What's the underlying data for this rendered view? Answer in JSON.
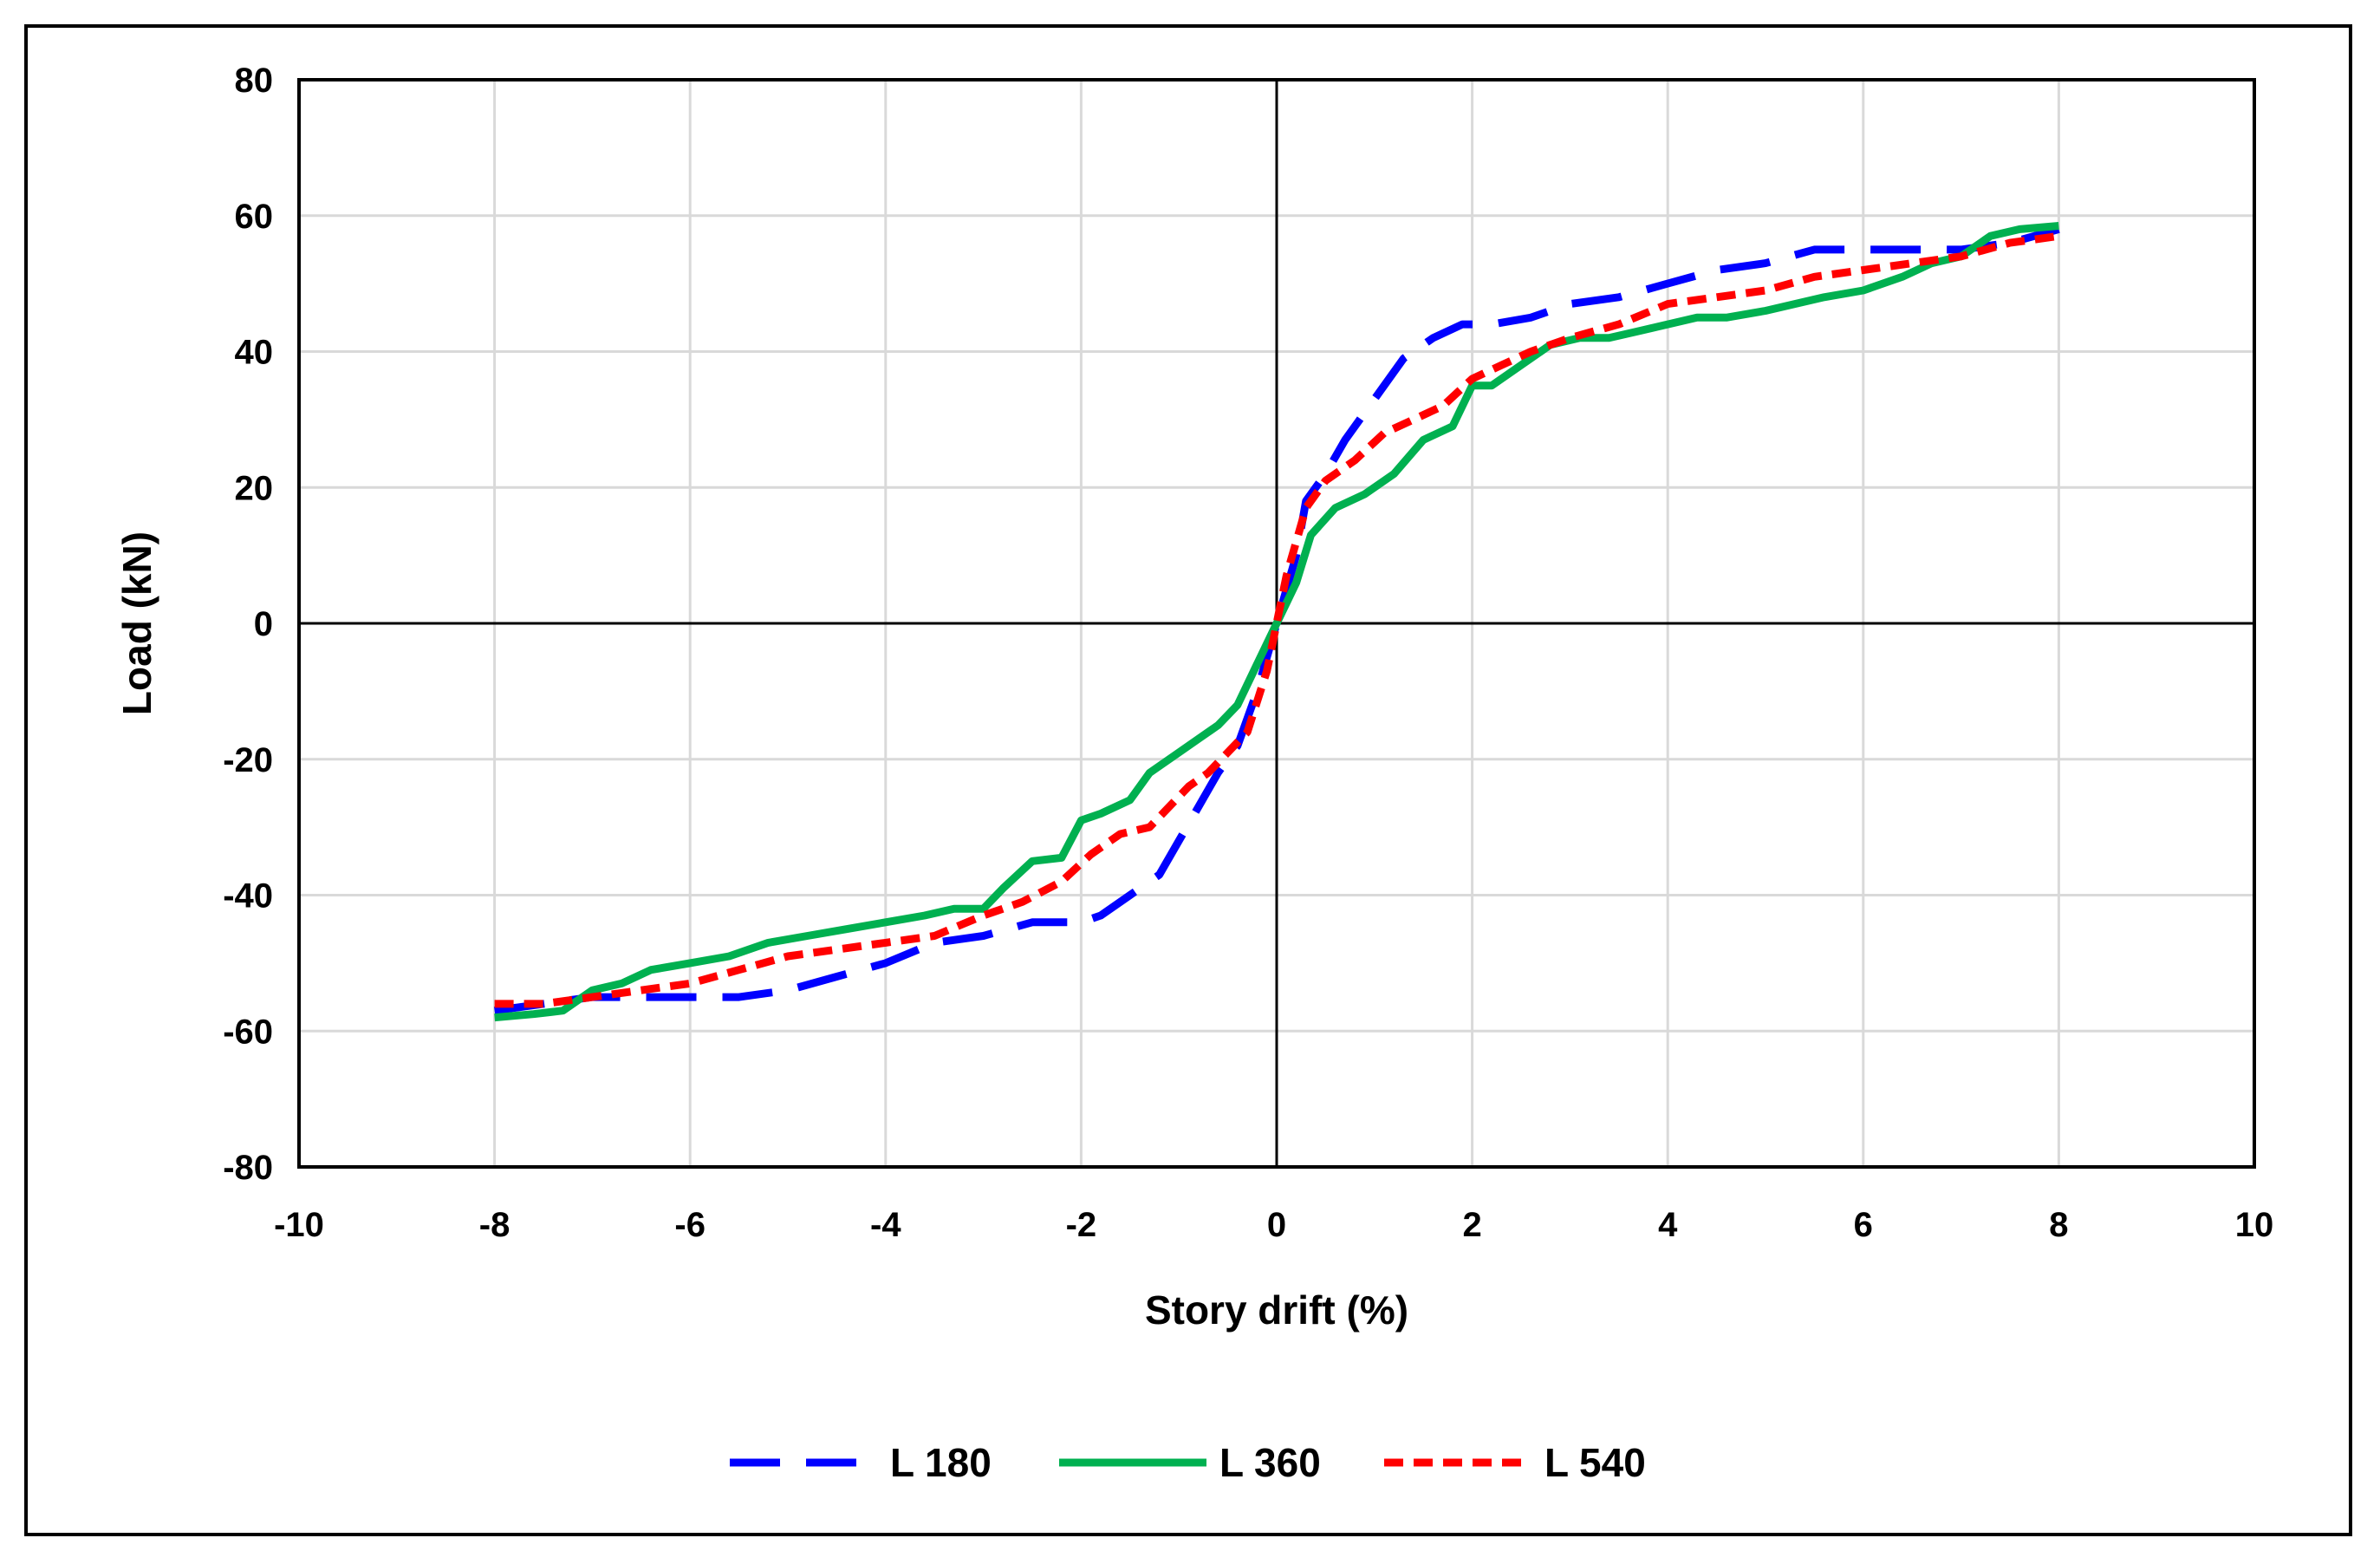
{
  "chart_data": {
    "type": "line",
    "title": "",
    "xlabel": "Story drift (%)",
    "ylabel": "Load (kN)",
    "xlim": [
      -10,
      10
    ],
    "ylim": [
      -80,
      80
    ],
    "xticks": [
      "-10",
      "-8",
      "-6",
      "-4",
      "-2",
      "0",
      "2",
      "4",
      "6",
      "8",
      "10"
    ],
    "yticks": [
      "80",
      "60",
      "40",
      "20",
      "0",
      "-20",
      "-40",
      "-60",
      "-80"
    ],
    "grid": true,
    "legend_position": "bottom",
    "series": [
      {
        "name": "L 180",
        "color": "#0000ff",
        "dash": "long-dash",
        "x": [
          -8,
          -7.5,
          -7,
          -6.5,
          -6,
          -5.5,
          -5,
          -4.5,
          -4,
          -3.5,
          -3,
          -2.5,
          -2,
          -1.8,
          -1.5,
          -1.2,
          -1,
          -0.8,
          -0.6,
          -0.4,
          -0.2,
          0,
          0.2,
          0.3,
          0.5,
          0.7,
          1,
          1.3,
          1.6,
          1.9,
          2.2,
          2.6,
          3,
          3.5,
          4,
          4.5,
          5,
          5.5,
          6,
          6.5,
          7,
          7.5,
          8
        ],
        "y": [
          -57,
          -56,
          -55,
          -55,
          -55,
          -55,
          -54,
          -52,
          -50,
          -47,
          -46,
          -44,
          -44,
          -43,
          -40,
          -37,
          -32,
          -27,
          -22,
          -18,
          -10,
          0,
          10,
          18,
          22,
          27,
          33,
          39,
          42,
          44,
          44,
          45,
          47,
          48,
          50,
          52,
          53,
          55,
          55,
          55,
          55,
          56,
          58
        ]
      },
      {
        "name": "L 360",
        "color": "#00b050",
        "dash": "solid",
        "x": [
          -8,
          -7.6,
          -7.3,
          -7,
          -6.7,
          -6.4,
          -6,
          -5.6,
          -5.2,
          -4.8,
          -4.4,
          -4,
          -3.6,
          -3.3,
          -3,
          -2.8,
          -2.5,
          -2.2,
          -2,
          -1.8,
          -1.5,
          -1.3,
          -1,
          -0.8,
          -0.6,
          -0.4,
          -0.2,
          0,
          0.2,
          0.35,
          0.6,
          0.9,
          1.2,
          1.5,
          1.8,
          2,
          2.2,
          2.5,
          2.8,
          3.1,
          3.4,
          3.7,
          4,
          4.3,
          4.6,
          5,
          5.3,
          5.6,
          6,
          6.4,
          6.7,
          7,
          7.3,
          7.6,
          8
        ],
        "y": [
          -58,
          -57.5,
          -57,
          -54,
          -53,
          -51,
          -50,
          -49,
          -47,
          -46,
          -45,
          -44,
          -43,
          -42,
          -42,
          -39,
          -35,
          -34.5,
          -29,
          -28,
          -26,
          -22,
          -19,
          -17,
          -15,
          -12,
          -6,
          0,
          6,
          13,
          17,
          19,
          22,
          27,
          29,
          35,
          35,
          38,
          41,
          42,
          42,
          43,
          44,
          45,
          45,
          46,
          47,
          48,
          49,
          51,
          53,
          54,
          57,
          58,
          58.5
        ]
      },
      {
        "name": "L 540",
        "color": "#ff0000",
        "dash": "short-dash",
        "x": [
          -8,
          -7.5,
          -7,
          -6.5,
          -6,
          -5.5,
          -5,
          -4.5,
          -4,
          -3.5,
          -3,
          -2.6,
          -2.2,
          -1.9,
          -1.6,
          -1.3,
          -1.1,
          -0.9,
          -0.7,
          -0.5,
          -0.3,
          -0.1,
          0,
          0.1,
          0.3,
          0.5,
          0.8,
          1.1,
          1.4,
          1.7,
          2,
          2.3,
          2.6,
          3,
          3.5,
          4,
          4.5,
          5,
          5.5,
          6,
          6.5,
          7,
          7.5,
          8
        ],
        "y": [
          -56,
          -56,
          -55,
          -54,
          -53,
          -51,
          -49,
          -48,
          -47,
          -46,
          -43,
          -41,
          -38,
          -34,
          -31,
          -30,
          -27,
          -24,
          -22,
          -19,
          -16,
          -7,
          0,
          7,
          17,
          21,
          24,
          28,
          30,
          32,
          36,
          38,
          40,
          42,
          44,
          47,
          48,
          49,
          51,
          52,
          53,
          54,
          56,
          57
        ]
      }
    ]
  }
}
